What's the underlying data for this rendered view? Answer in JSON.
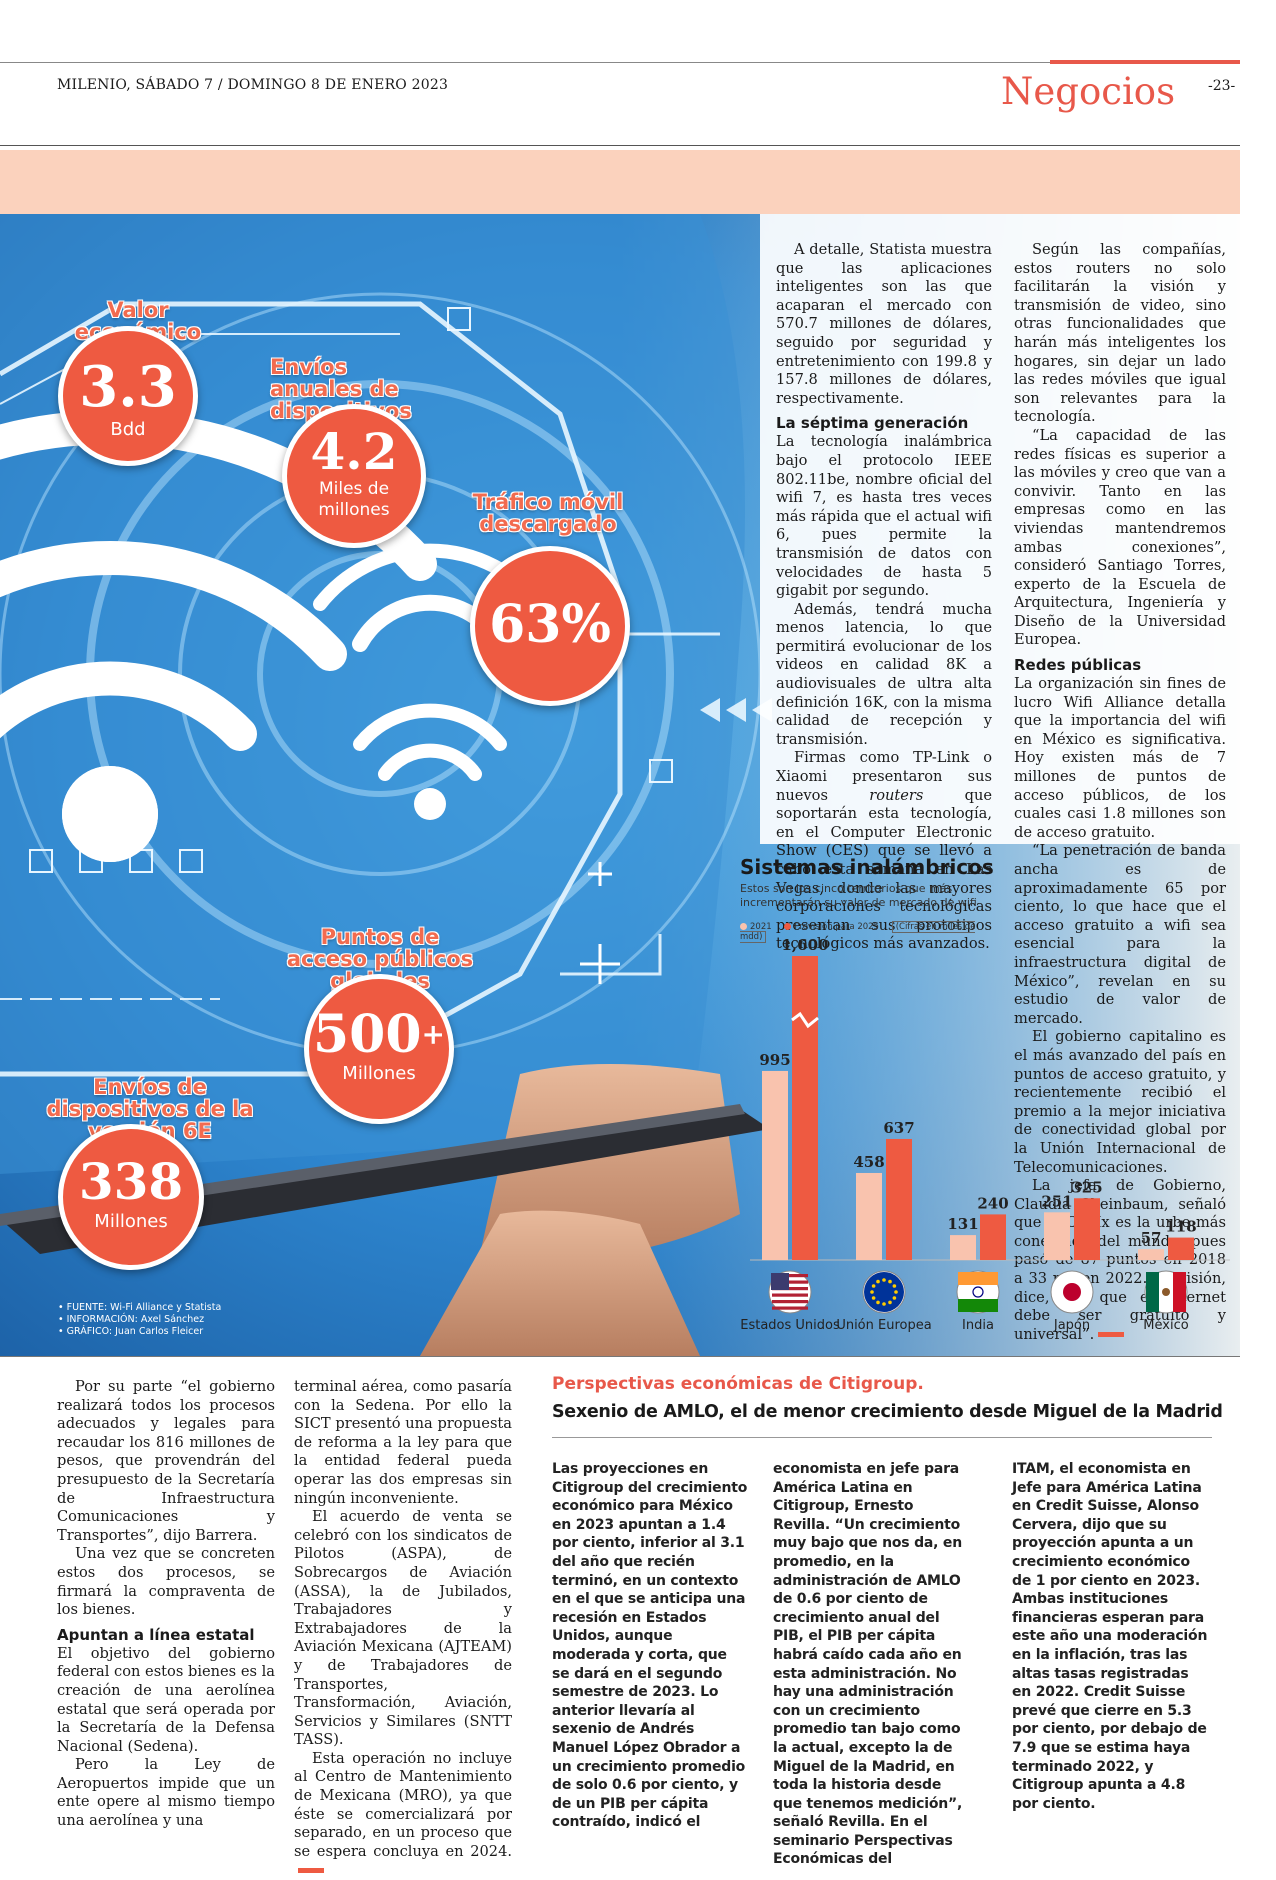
{
  "header": {
    "date": "MILENIO, SÁBADO 7 / DOMINGO 8 DE ENERO 2023",
    "section": "Negocios",
    "page": "-23-"
  },
  "infographic": {
    "stats": [
      {
        "title": "Valor económico",
        "value": "3.3",
        "unit": "Bdd"
      },
      {
        "title": "Envíos anuales de dispositivos",
        "value": "4.2",
        "unit": "Miles de millones"
      },
      {
        "title": "Tráfico móvil descargado",
        "value": "63%",
        "unit": ""
      },
      {
        "title": "Puntos de acceso públicos globales",
        "value": "500",
        "plus": "+",
        "unit": "Millones"
      },
      {
        "title": "Envíos de dispositivos de la versión 6E",
        "value": "338",
        "unit": "Millones"
      }
    ],
    "credits": [
      "• FUENTE: Wi-Fi Alliance y Statista",
      "• INFORMACIÓN: Axel Sánchez",
      "• GRÁFICO: Juan Carlos Fleicer"
    ]
  },
  "chart_data": {
    "type": "bar",
    "title": "Sistemas inalámbricos",
    "subtitle": "Estos son los cinco territorios que más incrementarán su valor de mercado de wifi",
    "unit_note": "(Cifras en miles de mdd)",
    "categories": [
      "Estados Unidos",
      "Unión Europea",
      "India",
      "Japón",
      "México"
    ],
    "series": [
      {
        "name": "2021",
        "values": [
          995,
          458,
          131,
          251,
          57
        ],
        "color": "#f9c3ae"
      },
      {
        "name": "Previsión para 2025",
        "values": [
          1600,
          637,
          240,
          325,
          118
        ],
        "color": "#ee5a41"
      }
    ],
    "value_labels_2021": [
      "995",
      "458",
      "131",
      "251",
      "57"
    ],
    "value_labels_2025": [
      "1,600",
      "637",
      "240",
      "325",
      "118"
    ],
    "ylim": [
      0,
      1600
    ]
  },
  "col1": {
    "p1": "A detalle, Statista muestra que las aplicaciones inteligentes son las que acaparan el mercado con 570.7 millones de dólares, seguido por seguridad y entretenimiento con 199.8 y 157.8 millones de dólares, respectivamente.",
    "h1": "La séptima generación",
    "p2": "La tecnología inalámbrica bajo el protocolo IEEE 802.11be, nombre oficial del wifi 7, es hasta tres veces más rápida que el actual wifi 6, pues permite la transmisión de datos con velocidades de hasta 5 gigabit por segundo.",
    "p3": "Además, tendrá mucha menos latencia, lo que permitirá evolucionar de los videos en calidad 8K a audiovisuales de ultra alta definición 16K, con la misma calidad de recepción y transmisión.",
    "p4a": "Firmas como TP-Link o Xiaomi presentaron sus nuevos ",
    "p4em": "routers",
    "p4b": " que soportarán esta tecnología, en el Computer Electronic Show (CES) que se llevó a cabo esta semana en Las Vegas, donde las mayores corporaciones tecnológicas presentan sus prototipos tecnológicos más avanzados."
  },
  "col2": {
    "p1": "Según las compañías, estos routers no solo facilitarán la visión y transmisión de video, sino otras funcionalidades que harán más inteligentes los hogares, sin dejar un lado las redes móviles que igual son relevantes para la tecnología.",
    "p2": "“La capacidad de las redes físicas es superior a las móviles y creo que van a convivir. Tanto en las empresas como en las viviendas mantendremos ambas conexiones”, consideró Santiago Torres, experto de la Escuela de Arquitectura, Ingeniería y Diseño de la Universidad Europea.",
    "h1": "Redes públicas",
    "p3": "La organización sin fines de lucro Wifi Alliance detalla que la importancia del wifi en México es significativa. Hoy existen más de 7 millones de puntos de acceso públicos, de los cuales casi 1.8 millones son de acceso gratuito.",
    "p4": "“La penetración de banda ancha es de aproximadamente 65 por ciento, lo que hace que el acceso gratuito a wifi sea esencial para la infraestructura digital de México”, revelan en su estudio de valor de mercado.",
    "p5": "El gobierno capitalino es el más avanzado del país en puntos de acceso gratuito, y recientemente recibió el premio a la mejor iniciativa de conectividad global por la Unión Internacional de Telecomunicaciones.",
    "p6": "La jefa de Gobierno, Claudia Sheinbaum, señaló que la CdMx es la urbe más conectada del mundo, pues pasó de 87 puntos en 2018 a 33 mil en 2022. Su visión, dice, “es que el internet debe ser gratuito y universal”."
  },
  "lower_left": {
    "p1": "Por su parte “el gobierno realizará todos los procesos adecuados y legales para recaudar los 816 millones de pesos, que provendrán del presupuesto de la Secretaría de Infraestructura Comunicaciones y Transportes”, dijo Barrera.",
    "p2": "Una vez que se concreten estos dos procesos, se firmará la compraventa de los bienes.",
    "h1": "Apuntan a línea estatal",
    "p3": "El objetivo del gobierno federal con estos bienes es la creación de una aerolínea estatal que será operada por la Secretaría de la Defensa Nacional (Sedena).",
    "p4": "Pero la Ley de Aeropuertos impide que un ente opere al mismo tiempo una aerolínea y una"
  },
  "lower_mid": {
    "p1": "terminal aérea, como pasaría con la Sedena. Por ello la SICT presentó una propuesta de reforma a la ley para que la entidad federal pueda operar las dos empresas sin ningún inconveniente.",
    "p2": "El acuerdo de venta se celebró con los sindicatos de Pilotos (ASPA), de Sobrecargos de Aviación (ASSA), la de Jubilados, Trabajadores y Extrabajadores de la Aviación Mexicana (AJTEAM) y de Trabajadores de Transportes, Transformación, Aviación, Servicios y Similares (SNTT TASS).",
    "p3": "Esta operación no incluye al Centro de Mantenimiento de Mexicana (MRO), ya que éste se comercializará por separado, en un proceso que se espera concluya en 2024."
  },
  "citi": {
    "kicker": "Perspectivas económicas de Citigroup.",
    "headline": "Sexenio de AMLO, el de menor crecimiento desde Miguel de la Madrid",
    "c1": "Las proyecciones en Citigroup del crecimiento económico para México en 2023 apuntan a 1.4 por ciento, inferior al 3.1 del año que recién terminó, en un contexto en el que se anticipa una recesión en Estados Unidos, aunque moderada y corta, que se dará en el segundo semestre de 2023. Lo anterior llevaría al sexenio de Andrés Manuel López Obrador a un crecimiento promedio de solo 0.6 por ciento, y de un PIB per cápita contraído, indicó el",
    "c2": "economista en jefe para América Latina en Citigroup, Ernesto Revilla. “Un crecimiento muy bajo que nos da, en promedio, en la administración de AMLO de 0.6 por ciento de crecimiento anual del PIB, el PIB per cápita habrá caído cada año en esta administración. No hay una administración con un crecimiento promedio tan bajo como la actual, excepto la de Miguel de la Madrid, en toda la historia desde que tenemos medición”, señaló Revilla. En el seminario Perspectivas Económicas del",
    "c3": "ITAM, el economista en Jefe para América Latina en Credit Suisse, Alonso Cervera, dijo que su proyección apunta a un crecimiento económico de 1 por ciento en 2023. Ambas instituciones financieras esperan para este año una moderación en la inflación, tras las altas tasas registradas en 2022. Credit Suisse prevé que cierre en 5.3 por ciento, por debajo de 7.9 que se estima haya terminado 2022, y Citigroup apunta a 4.8 por ciento."
  }
}
